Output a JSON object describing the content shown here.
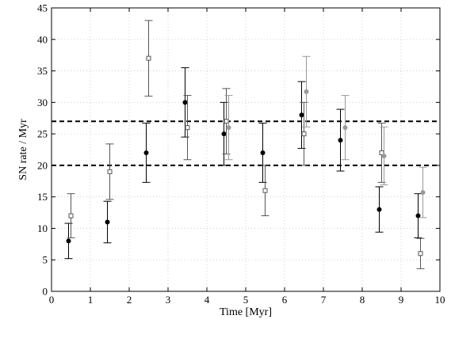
{
  "chart_data": {
    "type": "scatter",
    "title": "",
    "xlabel": "Time [Myr]",
    "ylabel": "SN rate / Myr",
    "xlim": [
      0,
      10
    ],
    "ylim": [
      0,
      45
    ],
    "xticks": [
      0,
      1,
      2,
      3,
      4,
      5,
      6,
      7,
      8,
      9,
      10
    ],
    "yticks": [
      0,
      5,
      10,
      15,
      20,
      25,
      30,
      35,
      40,
      45
    ],
    "grid": true,
    "legend": "none",
    "reference_lines": [
      {
        "y": 27,
        "style": "dashed",
        "color": "#000000"
      },
      {
        "y": 20,
        "style": "dashed",
        "color": "#000000"
      }
    ],
    "series": [
      {
        "marker": "filled-circle",
        "color": "#000000",
        "points": [
          {
            "x": 0.5,
            "y": 8,
            "err_low": 5.2,
            "err_high": 10.8
          },
          {
            "x": 1.5,
            "y": 11,
            "err_low": 7.7,
            "err_high": 14.3
          },
          {
            "x": 2.5,
            "y": 22,
            "err_low": 17.3,
            "err_high": 26.7
          },
          {
            "x": 3.5,
            "y": 30,
            "err_low": 24.5,
            "err_high": 35.5
          },
          {
            "x": 4.5,
            "y": 25,
            "err_low": 20.0,
            "err_high": 30.0
          },
          {
            "x": 5.5,
            "y": 22,
            "err_low": 17.3,
            "err_high": 26.7
          },
          {
            "x": 6.5,
            "y": 28,
            "err_low": 22.7,
            "err_high": 33.3
          },
          {
            "x": 7.5,
            "y": 24,
            "err_low": 19.1,
            "err_high": 28.9
          },
          {
            "x": 8.5,
            "y": 13,
            "err_low": 9.4,
            "err_high": 16.6
          },
          {
            "x": 9.5,
            "y": 12,
            "err_low": 8.5,
            "err_high": 15.5
          }
        ]
      },
      {
        "marker": "open-square",
        "color": "#555555",
        "points": [
          {
            "x": 0.5,
            "y": 12,
            "err_low": 8.5,
            "err_high": 15.5
          },
          {
            "x": 1.5,
            "y": 19,
            "err_low": 14.6,
            "err_high": 23.4
          },
          {
            "x": 2.5,
            "y": 37,
            "err_low": 31.0,
            "err_high": 43.0
          },
          {
            "x": 3.5,
            "y": 26,
            "err_low": 20.9,
            "err_high": 31.1
          },
          {
            "x": 4.5,
            "y": 27,
            "err_low": 21.8,
            "err_high": 32.2
          },
          {
            "x": 5.5,
            "y": 16,
            "err_low": 12.0,
            "err_high": 20.0
          },
          {
            "x": 6.5,
            "y": 25,
            "err_low": 20.0,
            "err_high": 30.0
          },
          {
            "x": 8.5,
            "y": 22,
            "err_low": 17.3,
            "err_high": 26.7
          },
          {
            "x": 9.5,
            "y": 6,
            "err_low": 3.6,
            "err_high": 8.4
          }
        ]
      },
      {
        "marker": "filled-circle",
        "color": "#999999",
        "points": [
          {
            "x": 4.5,
            "y": 26,
            "err_low": 20.9,
            "err_high": 31.1
          },
          {
            "x": 6.5,
            "y": 31.7,
            "err_low": 26.1,
            "err_high": 37.3
          },
          {
            "x": 7.5,
            "y": 26,
            "err_low": 20.9,
            "err_high": 31.1
          },
          {
            "x": 8.5,
            "y": 21.5,
            "err_low": 16.9,
            "err_high": 26.1
          },
          {
            "x": 9.5,
            "y": 15.7,
            "err_low": 11.7,
            "err_high": 19.7
          }
        ]
      }
    ]
  }
}
